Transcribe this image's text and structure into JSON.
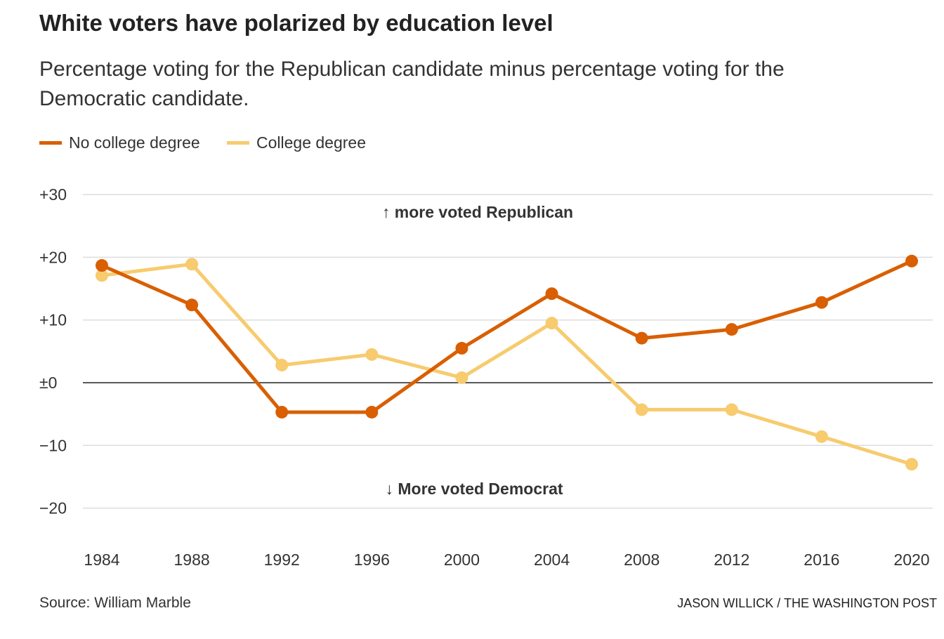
{
  "title": "White voters have polarized by education level",
  "subtitle": "Percentage voting for the Republican candidate minus percentage voting for the Democratic candidate.",
  "source": "Source: William Marble",
  "credit": "JASON WILLICK / THE WASHINGTON POST",
  "colors": {
    "no_college": "#d95f02",
    "college": "#f7cb6e",
    "grid": "#dddddd",
    "zero": "#222222"
  },
  "chart_data": {
    "type": "line",
    "x": [
      1984,
      1988,
      1992,
      1996,
      2000,
      2004,
      2008,
      2012,
      2016,
      2020
    ],
    "series": [
      {
        "name": "No college degree",
        "values": [
          18.7,
          12.4,
          -4.7,
          -4.7,
          5.5,
          14.2,
          7.1,
          8.5,
          12.8,
          19.4
        ]
      },
      {
        "name": "College degree",
        "values": [
          17.1,
          18.9,
          2.8,
          4.5,
          0.8,
          9.5,
          -4.3,
          -4.3,
          -8.6,
          -13.0
        ]
      }
    ],
    "yticks": [
      30,
      20,
      10,
      0,
      -10,
      -20
    ],
    "ytick_labels": [
      "+30",
      "+20",
      "+10",
      "±0",
      "−10",
      "−20"
    ],
    "xtick_labels": [
      "1984",
      "1988",
      "1992",
      "1996",
      "2000",
      "2004",
      "2008",
      "2012",
      "2016",
      "2020"
    ],
    "ylim": [
      -25,
      30
    ],
    "annotations": [
      "↑ more voted Republican",
      "↓ More voted Democrat"
    ],
    "legend": "top-left",
    "grid": true
  }
}
